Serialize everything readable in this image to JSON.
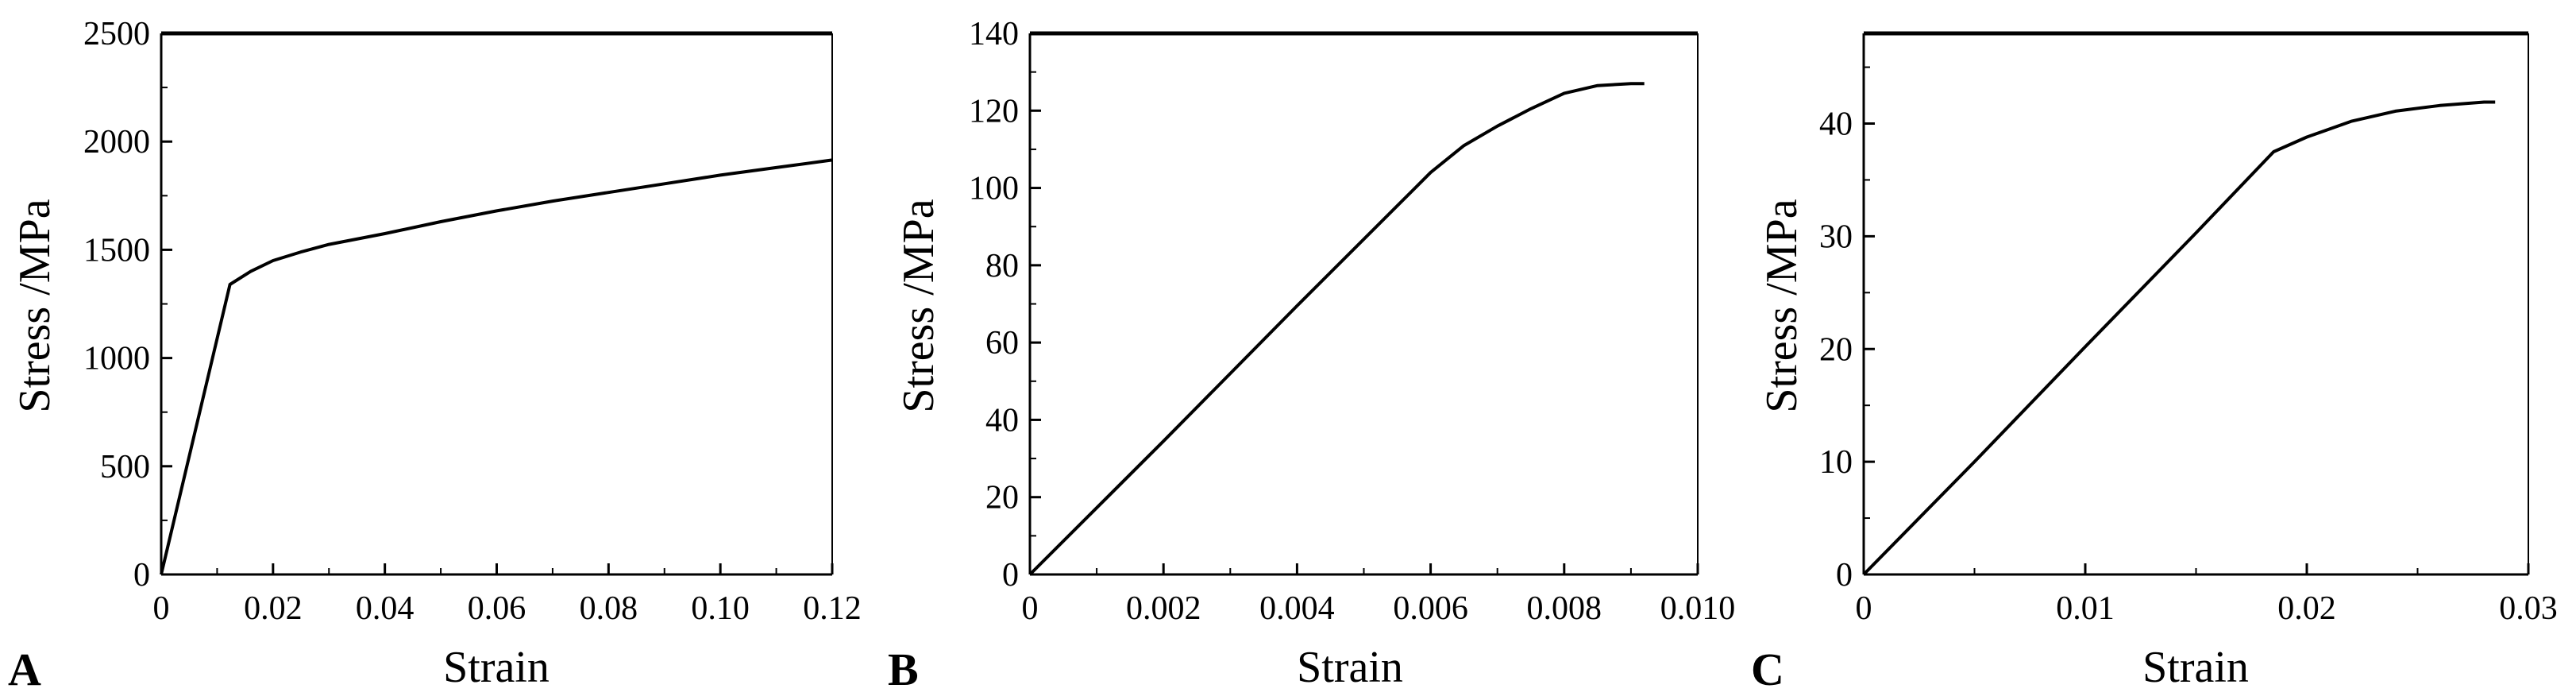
{
  "chart_data": [
    {
      "type": "line",
      "panel_label": "A",
      "xlabel": "Strain",
      "ylabel": "Stress /MPa",
      "xlim": [
        0,
        0.12
      ],
      "ylim": [
        0,
        2500
      ],
      "xticks": [
        "0",
        "0.02",
        "0.04",
        "0.06",
        "0.08",
        "0.10",
        "0.12"
      ],
      "yticks": [
        "0",
        "500",
        "1000",
        "1500",
        "2000",
        "2500"
      ],
      "grid": false,
      "series": [
        {
          "x": [
            0,
            0.0123,
            0.016,
            0.02,
            0.025,
            0.03,
            0.04,
            0.05,
            0.06,
            0.07,
            0.08,
            0.09,
            0.1,
            0.11,
            0.12
          ],
          "y": [
            0,
            1340,
            1400,
            1450,
            1490,
            1525,
            1575,
            1630,
            1680,
            1725,
            1765,
            1805,
            1845,
            1880,
            1915
          ]
        }
      ]
    },
    {
      "type": "line",
      "panel_label": "B",
      "xlabel": "Strain",
      "ylabel": "Stress /MPa",
      "xlim": [
        0,
        0.01
      ],
      "ylim": [
        0,
        140
      ],
      "xticks": [
        "0",
        "0.002",
        "0.004",
        "0.006",
        "0.008",
        "0.010"
      ],
      "yticks": [
        "0",
        "20",
        "40",
        "60",
        "80",
        "100",
        "120",
        "140"
      ],
      "grid": false,
      "series": [
        {
          "x": [
            0,
            0.002,
            0.004,
            0.006,
            0.0065,
            0.007,
            0.0075,
            0.008,
            0.0085,
            0.009,
            0.0092
          ],
          "y": [
            0,
            34.5,
            69.5,
            104,
            111,
            116,
            120.5,
            124.5,
            126.5,
            127,
            127
          ]
        }
      ]
    },
    {
      "type": "line",
      "panel_label": "C",
      "xlabel": "Strain",
      "ylabel": "Stress /MPa",
      "xlim": [
        0,
        0.03
      ],
      "ylim": [
        0,
        48
      ],
      "xticks": [
        "0",
        "0.01",
        "0.02",
        "0.03"
      ],
      "yticks": [
        "0",
        "10",
        "20",
        "30",
        "40"
      ],
      "grid": false,
      "series": [
        {
          "x": [
            0,
            0.005,
            0.01,
            0.015,
            0.0185,
            0.02,
            0.022,
            0.024,
            0.026,
            0.028,
            0.0285
          ],
          "y": [
            0,
            10,
            20.2,
            30.3,
            37.5,
            38.8,
            40.2,
            41.1,
            41.6,
            41.9,
            41.9
          ]
        }
      ]
    }
  ]
}
